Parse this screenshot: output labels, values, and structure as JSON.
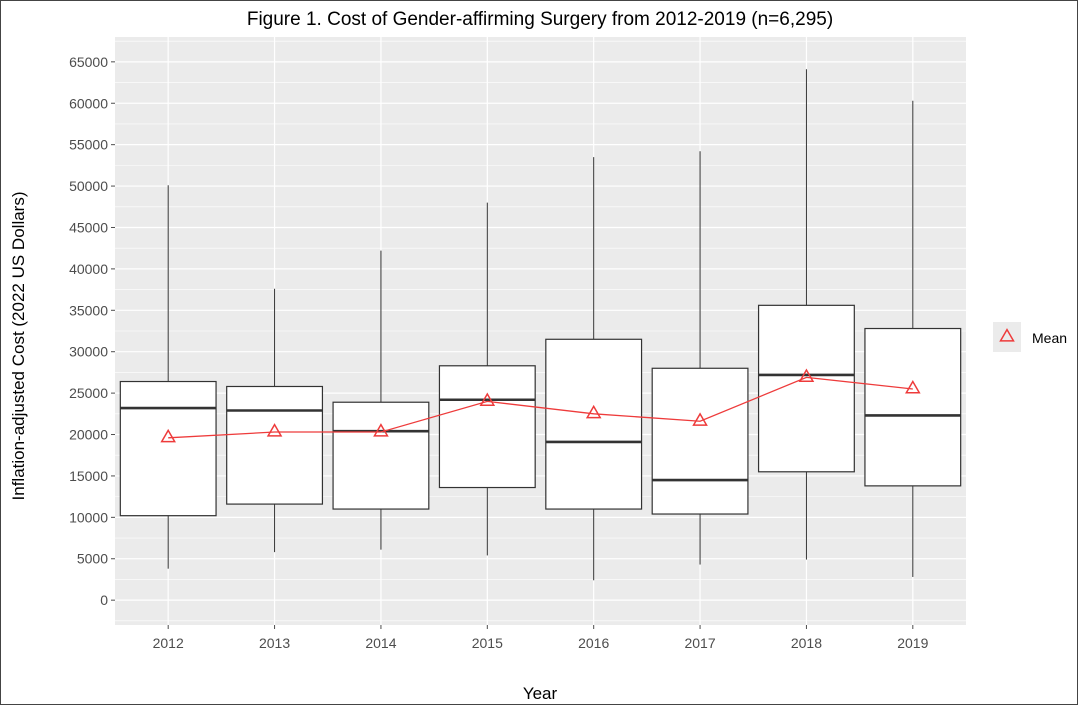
{
  "chart_data": {
    "type": "box",
    "title": "Figure 1. Cost of Gender-affirming Surgery from 2012-2019 (n=6,295)",
    "xlabel": "Year",
    "ylabel": "Inflation-adjusted Cost (2022 US Dollars)",
    "categories": [
      "2012",
      "2013",
      "2014",
      "2015",
      "2016",
      "2017",
      "2018",
      "2019"
    ],
    "ylim": [
      -3000,
      68000
    ],
    "yticks": [
      0,
      5000,
      10000,
      15000,
      20000,
      25000,
      30000,
      35000,
      40000,
      45000,
      50000,
      55000,
      60000,
      65000
    ],
    "grid": true,
    "boxes": [
      {
        "year": "2012",
        "min": 3800,
        "q1": 10200,
        "median": 23200,
        "q3": 26400,
        "max": 50100
      },
      {
        "year": "2013",
        "min": 5800,
        "q1": 11600,
        "median": 22900,
        "q3": 25800,
        "max": 37600
      },
      {
        "year": "2014",
        "min": 6100,
        "q1": 11000,
        "median": 20400,
        "q3": 23900,
        "max": 42200
      },
      {
        "year": "2015",
        "min": 5400,
        "q1": 13600,
        "median": 24200,
        "q3": 28300,
        "max": 48000
      },
      {
        "year": "2016",
        "min": 2400,
        "q1": 11000,
        "median": 19100,
        "q3": 31500,
        "max": 53500
      },
      {
        "year": "2017",
        "min": 4300,
        "q1": 10400,
        "median": 14500,
        "q3": 28000,
        "max": 54200
      },
      {
        "year": "2018",
        "min": 4900,
        "q1": 15500,
        "median": 27200,
        "q3": 35600,
        "max": 64100
      },
      {
        "year": "2019",
        "min": 2800,
        "q1": 13800,
        "median": 22300,
        "q3": 32800,
        "max": 60300
      }
    ],
    "mean_series": {
      "name": "Mean",
      "color": "#ee3b3b",
      "values": [
        19600,
        20300,
        20300,
        24000,
        22500,
        21600,
        26900,
        25500
      ]
    },
    "legend_position": "right"
  }
}
